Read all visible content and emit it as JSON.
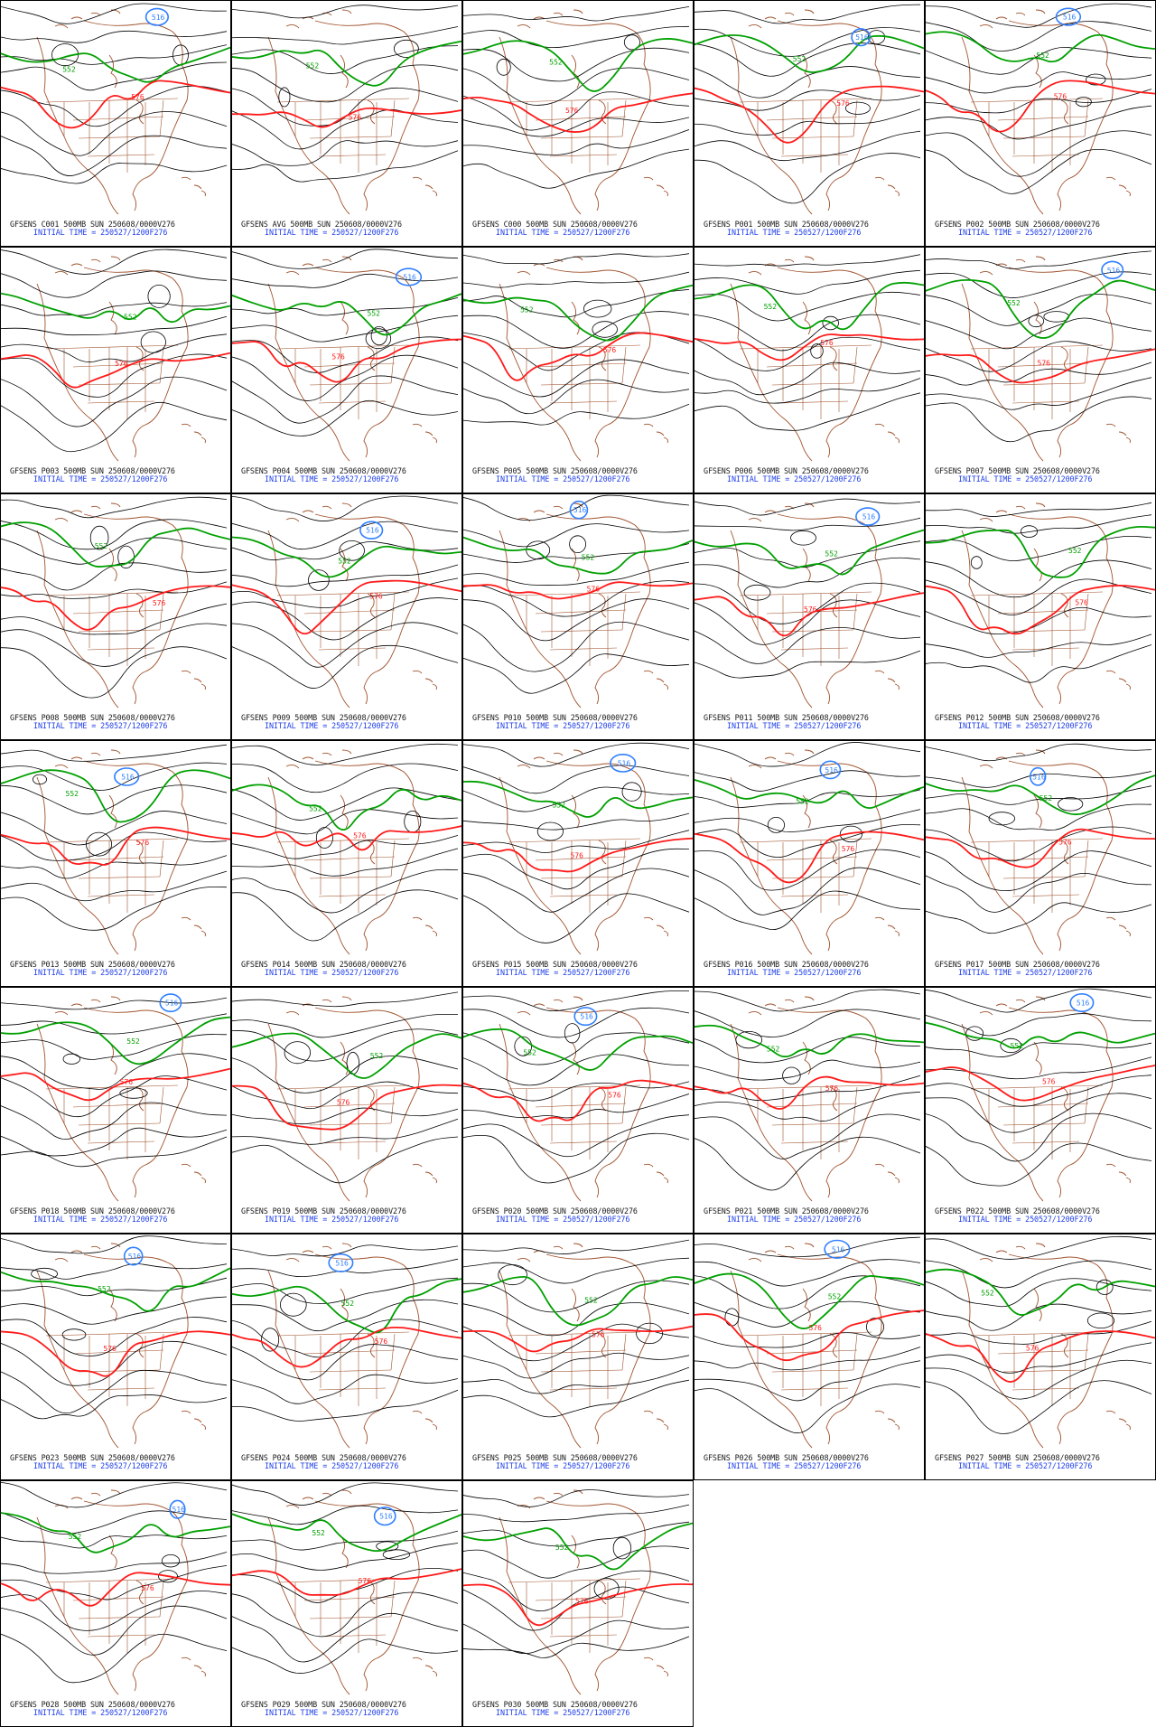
{
  "colors": {
    "height_contour": "#000000",
    "contour_552": "#00a000",
    "contour_576": "#ff1a1a",
    "contour_low": "#2f7fff",
    "coastline_borders": "#a0522d",
    "caption_title": "#1a1a1a",
    "caption_time": "#1f3fe8"
  },
  "contour_labels": {
    "green": "552",
    "red": "576",
    "blue": "516"
  },
  "initial_time_text": "INITIAL TIME = 250527/1200F276",
  "panels": [
    {
      "title": "GFSENS C001 500MB SUN 250608/0000V276",
      "has_blue": true
    },
    {
      "title": "GFSENS AVG 500MB SUN 250608/0000V276",
      "has_blue": false
    },
    {
      "title": "GFSENS C000 500MB SUN 250608/0000V276",
      "has_blue": false
    },
    {
      "title": "GFSENS P001 500MB SUN 250608/0000V276",
      "has_blue": true
    },
    {
      "title": "GFSENS P002 500MB SUN 250608/0000V276",
      "has_blue": true
    },
    {
      "title": "GFSENS P003 500MB SUN 250608/0000V276",
      "has_blue": false
    },
    {
      "title": "GFSENS P004 500MB SUN 250608/0000V276",
      "has_blue": true
    },
    {
      "title": "GFSENS P005 500MB SUN 250608/0000V276",
      "has_blue": false
    },
    {
      "title": "GFSENS P006 500MB SUN 250608/0000V276",
      "has_blue": false
    },
    {
      "title": "GFSENS P007 500MB SUN 250608/0000V276",
      "has_blue": true
    },
    {
      "title": "GFSENS P008 500MB SUN 250608/0000V276",
      "has_blue": false
    },
    {
      "title": "GFSENS P009 500MB SUN 250608/0000V276",
      "has_blue": true
    },
    {
      "title": "GFSENS P010 500MB SUN 250608/0000V276",
      "has_blue": true
    },
    {
      "title": "GFSENS P011 500MB SUN 250608/0000V276",
      "has_blue": true
    },
    {
      "title": "GFSENS P012 500MB SUN 250608/0000V276",
      "has_blue": false
    },
    {
      "title": "GFSENS P013 500MB SUN 250608/0000V276",
      "has_blue": true
    },
    {
      "title": "GFSENS P014 500MB SUN 250608/0000V276",
      "has_blue": false
    },
    {
      "title": "GFSENS P015 500MB SUN 250608/0000V276",
      "has_blue": true
    },
    {
      "title": "GFSENS P016 500MB SUN 250608/0000V276",
      "has_blue": true
    },
    {
      "title": "GFSENS P017 500MB SUN 250608/0000V276",
      "has_blue": true
    },
    {
      "title": "GFSENS P018 500MB SUN 250608/0000V276",
      "has_blue": true
    },
    {
      "title": "GFSENS P019 500MB SUN 250608/0000V276",
      "has_blue": false
    },
    {
      "title": "GFSENS P020 500MB SUN 250608/0000V276",
      "has_blue": true
    },
    {
      "title": "GFSENS P021 500MB SUN 250608/0000V276",
      "has_blue": false
    },
    {
      "title": "GFSENS P022 500MB SUN 250608/0000V276",
      "has_blue": true
    },
    {
      "title": "GFSENS P023 500MB SUN 250608/0000V276",
      "has_blue": true
    },
    {
      "title": "GFSENS P024 500MB SUN 250608/0000V276",
      "has_blue": true
    },
    {
      "title": "GFSENS P025 500MB SUN 250608/0000V276",
      "has_blue": false
    },
    {
      "title": "GFSENS P026 500MB SUN 250608/0000V276",
      "has_blue": true
    },
    {
      "title": "GFSENS P027 500MB SUN 250608/0000V276",
      "has_blue": false
    },
    {
      "title": "GFSENS P028 500MB SUN 250608/0000V276",
      "has_blue": true
    },
    {
      "title": "GFSENS P029 500MB SUN 250608/0000V276",
      "has_blue": true
    },
    {
      "title": "GFSENS P030 500MB SUN 250608/0000V276",
      "has_blue": false
    }
  ]
}
